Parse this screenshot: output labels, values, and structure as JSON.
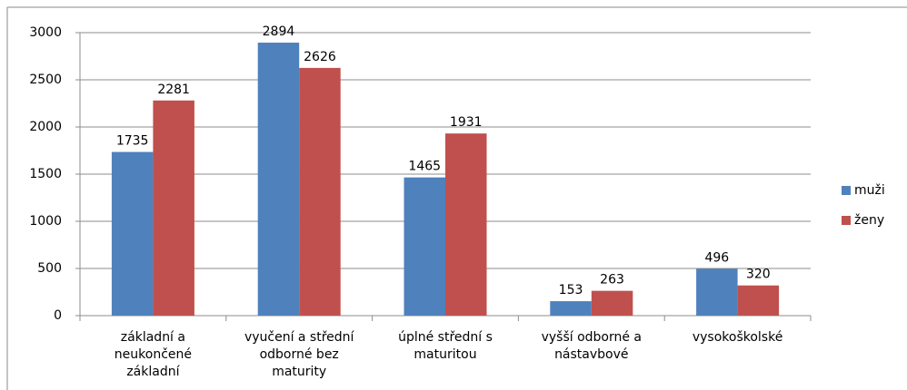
{
  "chart_data": {
    "type": "bar",
    "categories": [
      "základní a neukončené základní",
      "vyučení a střední odborné bez maturity",
      "úplné střední s maturitou",
      "vyšší odborné a nástavbové",
      "vysokoškolské"
    ],
    "series": [
      {
        "name": "muži",
        "color": "#4f81bd",
        "values": [
          1735,
          2894,
          1465,
          153,
          496
        ]
      },
      {
        "name": "ženy",
        "color": "#c0504d",
        "values": [
          2281,
          2626,
          1931,
          263,
          320
        ]
      }
    ],
    "ylim": [
      0,
      3000
    ],
    "yticks": [
      0,
      500,
      1000,
      1500,
      2000,
      2500,
      3000
    ],
    "grid": true,
    "legend": "right"
  }
}
